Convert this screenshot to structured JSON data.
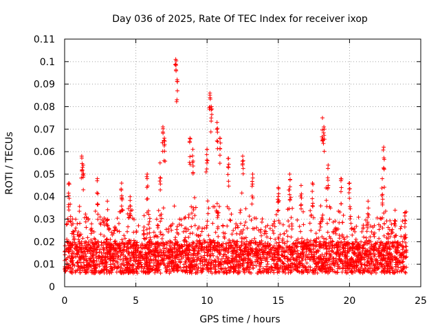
{
  "chart_data": {
    "type": "scatter",
    "title": "Day 036 of 2025, Rate Of TEC Index for receiver ixop",
    "xlabel": "GPS time / hours",
    "ylabel": "ROTI / TECUs",
    "xlim": [
      0,
      25
    ],
    "ylim": [
      0,
      0.11
    ],
    "xticks": [
      "0",
      "5",
      "10",
      "15",
      "20",
      "25"
    ],
    "yticks": [
      "0",
      "0.01",
      "0.02",
      "0.03",
      "0.04",
      "0.05",
      "0.06",
      "0.07",
      "0.08",
      "0.09",
      "0.1",
      "0.11"
    ],
    "grid": true,
    "marker": "+",
    "color": "#ff0000",
    "base_level": 0.013,
    "x_range_observed": [
      0,
      24
    ],
    "peaks": [
      {
        "x": 0.3,
        "y": 0.046
      },
      {
        "x": 1.2,
        "y": 0.058
      },
      {
        "x": 1.3,
        "y": 0.054
      },
      {
        "x": 2.3,
        "y": 0.048
      },
      {
        "x": 3.0,
        "y": 0.038
      },
      {
        "x": 4.0,
        "y": 0.046
      },
      {
        "x": 4.6,
        "y": 0.04
      },
      {
        "x": 5.8,
        "y": 0.05
      },
      {
        "x": 6.7,
        "y": 0.055
      },
      {
        "x": 6.9,
        "y": 0.071
      },
      {
        "x": 7.0,
        "y": 0.066
      },
      {
        "x": 7.8,
        "y": 0.101
      },
      {
        "x": 7.9,
        "y": 0.092
      },
      {
        "x": 8.8,
        "y": 0.066
      },
      {
        "x": 9.0,
        "y": 0.061
      },
      {
        "x": 10.0,
        "y": 0.061
      },
      {
        "x": 10.2,
        "y": 0.086
      },
      {
        "x": 10.3,
        "y": 0.08
      },
      {
        "x": 10.7,
        "y": 0.073
      },
      {
        "x": 10.9,
        "y": 0.066
      },
      {
        "x": 11.5,
        "y": 0.057
      },
      {
        "x": 12.5,
        "y": 0.058
      },
      {
        "x": 13.2,
        "y": 0.05
      },
      {
        "x": 15.0,
        "y": 0.044
      },
      {
        "x": 15.8,
        "y": 0.05
      },
      {
        "x": 16.6,
        "y": 0.045
      },
      {
        "x": 17.4,
        "y": 0.046
      },
      {
        "x": 18.1,
        "y": 0.075
      },
      {
        "x": 18.2,
        "y": 0.071
      },
      {
        "x": 18.5,
        "y": 0.054
      },
      {
        "x": 19.4,
        "y": 0.048
      },
      {
        "x": 20.0,
        "y": 0.046
      },
      {
        "x": 21.3,
        "y": 0.038
      },
      {
        "x": 22.3,
        "y": 0.048
      },
      {
        "x": 22.4,
        "y": 0.062
      },
      {
        "x": 23.2,
        "y": 0.034
      },
      {
        "x": 23.9,
        "y": 0.033
      }
    ]
  }
}
